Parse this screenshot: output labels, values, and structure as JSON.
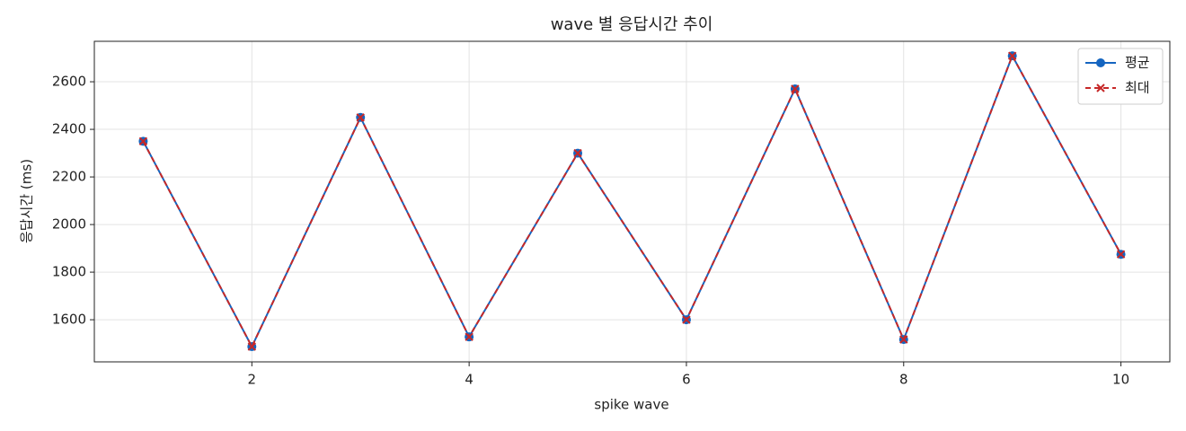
{
  "chart_data": {
    "type": "line",
    "title": "wave 별 응답시간 추이",
    "x_label": "spike wave",
    "y_label": "응답시간 (ms)",
    "x": [
      1,
      2,
      3,
      4,
      5,
      6,
      7,
      8,
      9,
      10
    ],
    "series": [
      {
        "name": "평균",
        "color": "#1565c0",
        "marker": "o",
        "linestyle": "solid",
        "values": [
          2350,
          1487,
          2450,
          1528,
          2300,
          1600,
          2570,
          1517,
          2709,
          1875
        ]
      },
      {
        "name": "최대",
        "color": "#c62828",
        "marker": "x",
        "linestyle": "dashed",
        "values": [
          2350,
          1487,
          2450,
          1528,
          2300,
          1600,
          2570,
          1517,
          2709,
          1875
        ]
      }
    ],
    "xlim": [
      0.55,
      10.45
    ],
    "xticks": [
      2,
      4,
      6,
      8,
      10
    ],
    "ylim": [
      1423,
      2770
    ],
    "yticks": [
      1600,
      1800,
      2000,
      2200,
      2400,
      2600
    ],
    "grid": true,
    "legend": "upper right"
  }
}
